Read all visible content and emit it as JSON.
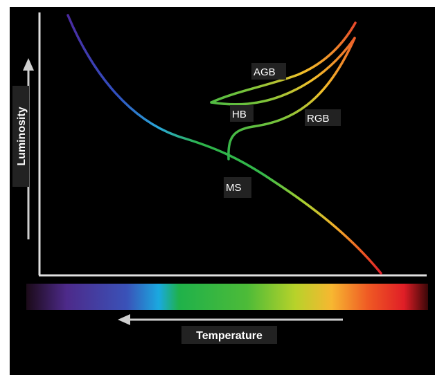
{
  "axes": {
    "y_label": "Luminosity",
    "x_label": "Temperature"
  },
  "branches": {
    "agb": "AGB",
    "hb": "HB",
    "rgb": "RGB",
    "ms": "MS"
  },
  "colors": {
    "background": "#000000",
    "axis": "#e0e0e0",
    "label_bg": "#222222",
    "spectrum": [
      "#1b0a18",
      "#4d2a8a",
      "#3a52b8",
      "#1aa9e0",
      "#1fb14a",
      "#4dbb38",
      "#b8d22a",
      "#f7b731",
      "#ef5a24",
      "#e01e26",
      "#3a0708"
    ]
  }
}
